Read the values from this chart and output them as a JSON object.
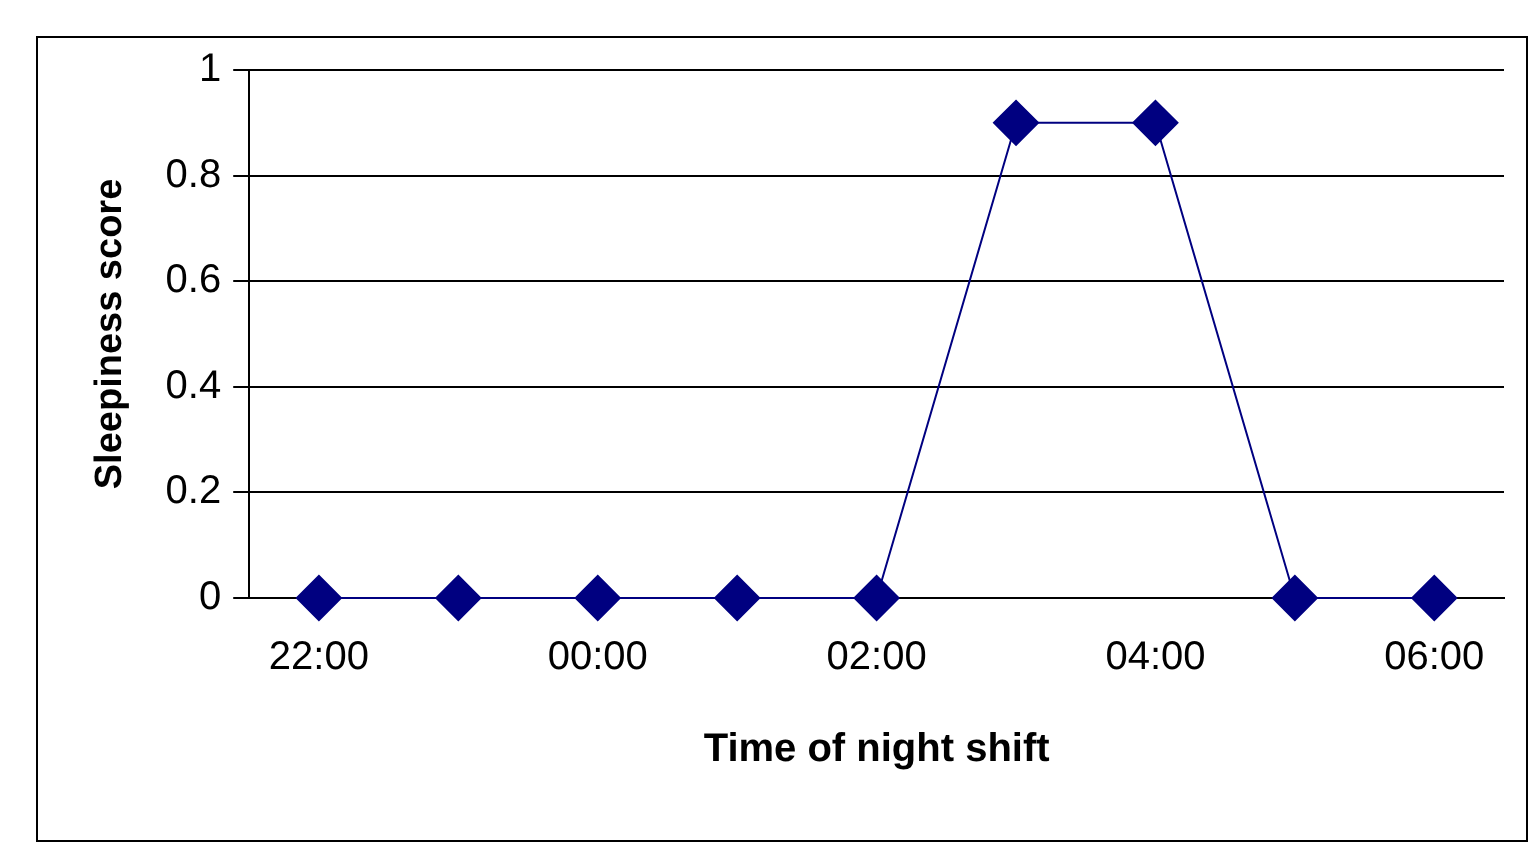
{
  "chart_data": {
    "type": "line",
    "xlabel": "Time of night shift",
    "ylabel": "Sleepiness score",
    "categories": [
      "22:00",
      null,
      "00:00",
      null,
      "02:00",
      null,
      "04:00",
      null,
      "06:00"
    ],
    "series": [
      {
        "color": "#000080",
        "values": [
          0,
          0,
          0,
          0,
          0,
          0.9,
          0.9,
          0,
          0
        ]
      }
    ],
    "ylim": [
      0,
      1
    ],
    "yticks": [
      0,
      0.2,
      0.4,
      0.6,
      0.8,
      1
    ],
    "grid": "y",
    "legend": false,
    "marker": "diamond",
    "line_style": "solid"
  }
}
